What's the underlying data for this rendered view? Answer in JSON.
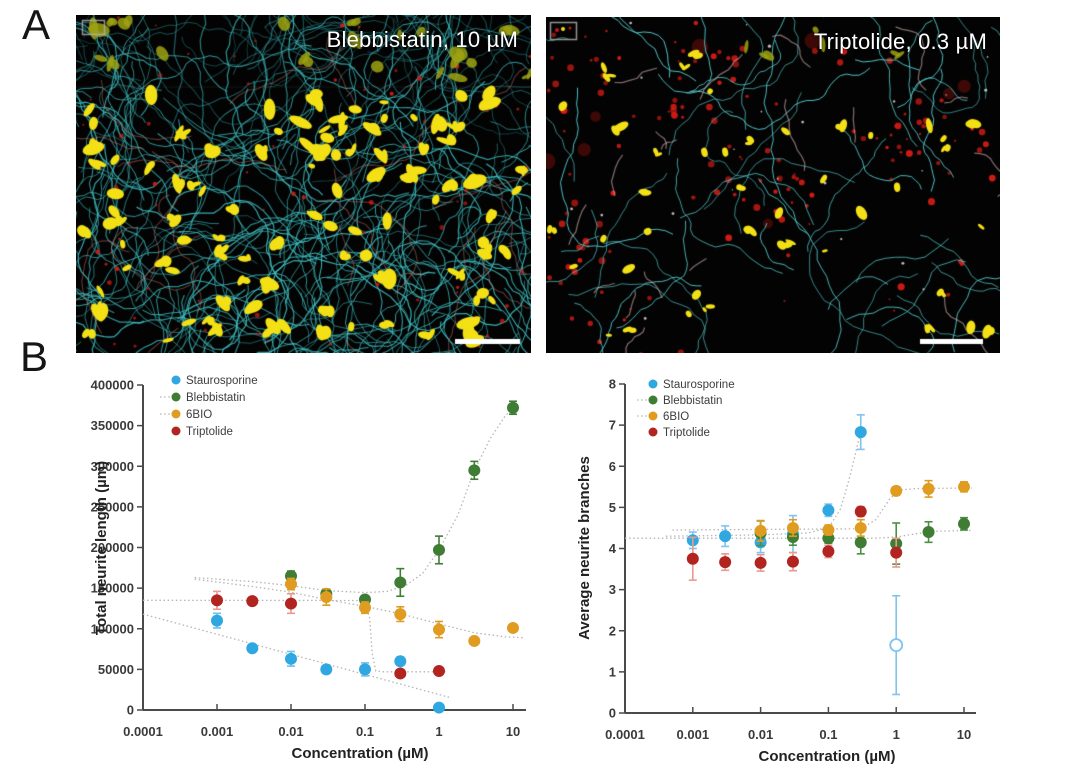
{
  "panel_a": {
    "letter": "A",
    "images": [
      {
        "label": "Blebbistatin, 10 µM",
        "has_scale_bar": true,
        "roi_icon": "rectangle-outline"
      },
      {
        "label": "Triptolide, 0.3 µM",
        "has_scale_bar": true,
        "roi_icon": "rectangle-outline"
      }
    ]
  },
  "panel_b": {
    "letter": "B"
  },
  "colors": {
    "staurosporine": "#2FA8E1",
    "blebbistatin": "#3F7D34",
    "sixbio": "#DF9C20",
    "triptolide": "#B2241F",
    "fit_line": "#b5b5b5",
    "axis": "#4a4a4a",
    "tick_text": "#3a3a3a",
    "micro_label": "#ffffff"
  },
  "chart_data": [
    {
      "type": "scatter",
      "xlabel": "Concentration (µM)",
      "ylabel": "Total neurite length (µm)",
      "x_scale": "log",
      "xlim": [
        0.0001,
        20
      ],
      "ylim": [
        0,
        400000
      ],
      "grid": false,
      "legend_position": "top-left-inside",
      "x_ticks": [
        0.0001,
        0.001,
        0.01,
        0.1,
        1,
        10
      ],
      "x_tick_labels": [
        "0.0001",
        "0.001",
        "0.01",
        "0.1",
        "1",
        "10"
      ],
      "y_ticks": [
        0,
        50000,
        100000,
        150000,
        200000,
        250000,
        300000,
        350000,
        400000
      ],
      "y_tick_labels": [
        "0",
        "50000",
        "100000",
        "150000",
        "200000",
        "250000",
        "300000",
        "350000",
        "400000"
      ],
      "series": [
        {
          "name": "Staurosporine",
          "color": "#2FA8E1",
          "err_color": "#6FC0EC",
          "legend_line": false,
          "x": [
            0.001,
            0.003,
            0.01,
            0.03,
            0.1,
            0.3,
            1
          ],
          "y": [
            110000,
            76000,
            63000,
            50000,
            50000,
            60000,
            3000
          ],
          "err": [
            9000,
            3000,
            9000,
            3000,
            8000,
            5000,
            2500
          ],
          "open": [
            0,
            0,
            0,
            0,
            0,
            0,
            0
          ]
        },
        {
          "name": "Blebbistatin",
          "color": "#3F7D34",
          "err_color": "#3F7D34",
          "legend_line": true,
          "x": [
            0.01,
            0.03,
            0.1,
            0.3,
            1,
            3,
            10
          ],
          "y": [
            165000,
            143000,
            136000,
            157000,
            197000,
            295000,
            372000
          ],
          "err": [
            6000,
            5000,
            4000,
            17000,
            17000,
            11000,
            8000
          ],
          "open": [
            0,
            0,
            0,
            0,
            0,
            0,
            0
          ]
        },
        {
          "name": "6BIO",
          "color": "#DF9C20",
          "err_color": "#DF9C20",
          "legend_line": true,
          "x": [
            0.01,
            0.03,
            0.1,
            0.3,
            1,
            3,
            10
          ],
          "y": [
            155000,
            139000,
            126000,
            118000,
            99000,
            85000,
            101000
          ],
          "err": [
            7000,
            10000,
            7000,
            9000,
            10000,
            4000,
            4000
          ],
          "open": [
            0,
            0,
            0,
            0,
            0,
            0,
            0
          ]
        },
        {
          "name": "Triptolide",
          "color": "#B2241F",
          "err_color": "#E79A90",
          "legend_line": false,
          "x": [
            0.001,
            0.003,
            0.01,
            0.3,
            1
          ],
          "y": [
            135000,
            134000,
            131000,
            45000,
            48000
          ],
          "err": [
            11000,
            4000,
            12000,
            4000,
            3000
          ],
          "open": [
            0,
            0,
            0,
            0,
            0
          ]
        }
      ],
      "fits": [
        {
          "series": "Staurosporine",
          "points": [
            [
              0.0001,
              118000
            ],
            [
              1.45,
              15000
            ]
          ]
        },
        {
          "series": "Blebbistatin",
          "points": [
            [
              0.0005,
              163000
            ],
            [
              0.003,
              158000
            ],
            [
              0.01,
              153000
            ],
            [
              0.03,
              147000
            ],
            [
              0.1,
              144500
            ],
            [
              0.2,
              146000
            ],
            [
              0.35,
              153000
            ],
            [
              0.6,
              168000
            ],
            [
              1,
              197000
            ],
            [
              1.8,
              240000
            ],
            [
              3,
              295000
            ],
            [
              5,
              335000
            ],
            [
              8,
              363000
            ],
            [
              12,
              377000
            ]
          ]
        },
        {
          "series": "6BIO",
          "points": [
            [
              0.0005,
              161000
            ],
            [
              0.003,
              152000
            ],
            [
              0.01,
              145000
            ],
            [
              0.03,
              136000
            ],
            [
              0.1,
              127500
            ],
            [
              0.3,
              118500
            ],
            [
              1,
              106000
            ],
            [
              3,
              95000
            ],
            [
              8,
              90000
            ],
            [
              14,
              89000
            ]
          ]
        },
        {
          "series": "Triptolide",
          "points": [
            [
              0.0001,
              135000
            ],
            [
              0.095,
              134800
            ],
            [
              0.115,
              115000
            ],
            [
              0.125,
              70000
            ],
            [
              0.14,
              48000
            ],
            [
              0.18,
              47000
            ],
            [
              1.3,
              47000
            ]
          ]
        }
      ]
    },
    {
      "type": "scatter",
      "xlabel": "Concentration (µM)",
      "ylabel": "Average neurite branches",
      "x_scale": "log",
      "xlim": [
        0.0001,
        20
      ],
      "ylim": [
        0,
        8
      ],
      "grid": false,
      "legend_position": "top-left-inside",
      "x_ticks": [
        0.0001,
        0.001,
        0.01,
        0.1,
        1,
        10
      ],
      "x_tick_labels": [
        "0.0001",
        "0.001",
        "0.01",
        "0.1",
        "1",
        "10"
      ],
      "y_ticks": [
        0,
        1,
        2,
        3,
        4,
        5,
        6,
        7,
        8
      ],
      "y_tick_labels": [
        "0",
        "1",
        "2",
        "3",
        "4",
        "5",
        "6",
        "7",
        "8"
      ],
      "series": [
        {
          "name": "Staurosporine",
          "color": "#2FA8E1",
          "err_color": "#7FC4EE",
          "legend_line": false,
          "x": [
            0.001,
            0.003,
            0.01,
            0.03,
            0.1,
            0.3,
            1
          ],
          "y": [
            4.2,
            4.3,
            4.15,
            4.35,
            4.93,
            6.83,
            1.65
          ],
          "err": [
            0.2,
            0.25,
            0.25,
            0.45,
            0.15,
            0.42,
            1.2
          ],
          "open": [
            0,
            0,
            0,
            0,
            0,
            0,
            1
          ]
        },
        {
          "name": "Blebbistatin",
          "color": "#3F7D34",
          "err_color": "#4C8F41",
          "legend_line": true,
          "x": [
            0.01,
            0.03,
            0.1,
            0.3,
            1,
            3,
            10
          ],
          "y": [
            4.37,
            4.28,
            4.25,
            4.15,
            4.12,
            4.4,
            4.6
          ],
          "err": [
            0.3,
            0.2,
            0.12,
            0.28,
            0.5,
            0.25,
            0.15
          ],
          "open": [
            0,
            0,
            0,
            0,
            0,
            0,
            0
          ]
        },
        {
          "name": "6BIO",
          "color": "#DF9C20",
          "err_color": "#DF9C20",
          "legend_line": true,
          "x": [
            0.01,
            0.03,
            0.1,
            0.3,
            1,
            3,
            10
          ],
          "y": [
            4.43,
            4.5,
            4.45,
            4.5,
            5.4,
            5.45,
            5.5
          ],
          "err": [
            0.25,
            0.2,
            0.12,
            0.2,
            0.1,
            0.2,
            0.12
          ],
          "open": [
            0,
            0,
            0,
            0,
            0,
            0,
            0
          ]
        },
        {
          "name": "Triptolide",
          "color": "#B2241F",
          "err_color": "#E79A90",
          "legend_line": false,
          "x": [
            0.001,
            0.003,
            0.01,
            0.03,
            0.1,
            0.3,
            1
          ],
          "y": [
            3.75,
            3.67,
            3.65,
            3.68,
            3.93,
            4.9,
            3.9
          ],
          "err": [
            0.52,
            0.2,
            0.2,
            0.22,
            0.15,
            0.12,
            0.35
          ],
          "open": [
            0,
            0,
            0,
            0,
            0,
            0,
            0
          ]
        }
      ],
      "fits": [
        {
          "series": "Staurosporine",
          "points": [
            [
              0.0004,
              4.3
            ],
            [
              0.01,
              4.33
            ],
            [
              0.05,
              4.38
            ],
            [
              0.1,
              4.5
            ],
            [
              0.15,
              4.95
            ],
            [
              0.2,
              5.65
            ],
            [
              0.25,
              6.3
            ],
            [
              0.3,
              6.85
            ]
          ]
        },
        {
          "series": "Blebbistatin",
          "points": [
            [
              0.0001,
              4.25
            ],
            [
              0.5,
              4.25
            ],
            [
              1,
              4.28
            ],
            [
              2,
              4.36
            ],
            [
              4,
              4.42
            ],
            [
              13,
              4.44
            ]
          ]
        },
        {
          "series": "6BIO",
          "points": [
            [
              0.0005,
              4.45
            ],
            [
              0.3,
              4.48
            ],
            [
              0.5,
              4.7
            ],
            [
              0.8,
              5.2
            ],
            [
              1.1,
              5.42
            ],
            [
              2,
              5.46
            ],
            [
              13,
              5.47
            ]
          ]
        }
      ]
    }
  ]
}
